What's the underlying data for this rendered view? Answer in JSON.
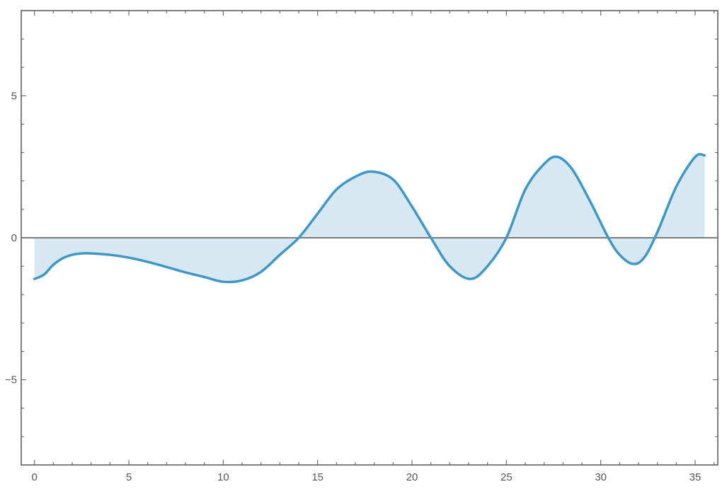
{
  "chart_data": {
    "type": "area",
    "title": "",
    "xlabel": "",
    "ylabel": "",
    "xlim": [
      -0.7,
      36.2
    ],
    "ylim": [
      -8,
      8
    ],
    "x_ticks": [
      0,
      5,
      10,
      15,
      20,
      25,
      30,
      35
    ],
    "y_ticks": [
      -5,
      0,
      5
    ],
    "x_minor_step": 1,
    "y_minor_step": 1,
    "grid": false,
    "legend": "none",
    "colors": {
      "line": "#3f97c8",
      "fill": "#d8e8f3",
      "axis": "#555555",
      "frame": "#555555"
    },
    "series": [
      {
        "x": [
          0,
          0.5,
          1,
          1.5,
          2,
          2.5,
          3,
          4,
          5,
          6,
          7,
          8,
          9,
          10,
          11,
          12,
          13,
          14,
          15,
          16,
          17,
          17.9,
          19,
          20,
          21,
          22,
          23.1,
          24,
          25,
          26,
          27,
          27.7,
          28.5,
          29.5,
          30.4,
          31,
          31.7,
          32.3,
          33,
          34,
          35,
          35.5
        ],
        "y": [
          -1.45,
          -1.3,
          -0.95,
          -0.72,
          -0.6,
          -0.55,
          -0.55,
          -0.6,
          -0.7,
          -0.85,
          -1.03,
          -1.22,
          -1.38,
          -1.55,
          -1.5,
          -1.2,
          -0.6,
          0.0,
          0.85,
          1.7,
          2.15,
          2.33,
          2.05,
          1.1,
          0.0,
          -1.0,
          -1.45,
          -1.0,
          0.0,
          1.7,
          2.6,
          2.85,
          2.4,
          1.2,
          0.0,
          -0.6,
          -0.92,
          -0.7,
          0.2,
          1.8,
          2.85,
          2.9
        ]
      }
    ]
  }
}
